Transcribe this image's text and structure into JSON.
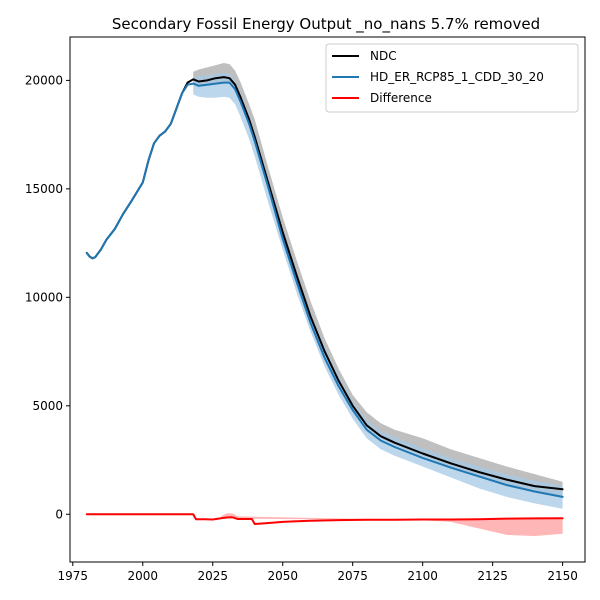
{
  "chart_data": {
    "type": "line",
    "title": "Secondary Fossil Energy Output _no_nans 5.7% removed",
    "xlabel": "",
    "ylabel": "",
    "xlim": [
      1974,
      2158
    ],
    "ylim": [
      -2200,
      22000
    ],
    "xticks": [
      1975,
      2000,
      2025,
      2050,
      2075,
      2100,
      2125,
      2150
    ],
    "yticks": [
      0,
      5000,
      10000,
      15000,
      20000
    ],
    "grid": false,
    "legend_position": "top-right",
    "series": [
      {
        "name": "NDC",
        "color": "#000000",
        "x": [
          1980,
          1981,
          1982,
          1983,
          1985,
          1987,
          1990,
          1993,
          1996,
          2000,
          2002,
          2004,
          2006,
          2008,
          2010,
          2012,
          2014,
          2016,
          2018,
          2020,
          2023,
          2026,
          2029,
          2031,
          2033,
          2035,
          2038,
          2040,
          2045,
          2050,
          2055,
          2060,
          2065,
          2070,
          2075,
          2080,
          2085,
          2090,
          2100,
          2110,
          2120,
          2130,
          2140,
          2150
        ],
        "y": [
          12050,
          11880,
          11800,
          11850,
          12200,
          12650,
          13150,
          13850,
          14450,
          15300,
          16300,
          17100,
          17450,
          17650,
          18000,
          18700,
          19400,
          19900,
          20050,
          19950,
          20000,
          20100,
          20150,
          20100,
          19800,
          19200,
          18200,
          17400,
          15200,
          13000,
          11000,
          9100,
          7500,
          6150,
          5000,
          4100,
          3600,
          3300,
          2800,
          2350,
          1950,
          1600,
          1300,
          1150
        ]
      },
      {
        "name": "HD_ER_RCP85_1_CDD_30_20",
        "color": "#1f77b4",
        "x": [
          1980,
          1981,
          1982,
          1983,
          1985,
          1987,
          1990,
          1993,
          1996,
          2000,
          2002,
          2004,
          2006,
          2008,
          2010,
          2012,
          2014,
          2016,
          2018,
          2020,
          2023,
          2026,
          2029,
          2031,
          2033,
          2035,
          2038,
          2040,
          2045,
          2050,
          2055,
          2060,
          2065,
          2070,
          2075,
          2080,
          2085,
          2090,
          2100,
          2110,
          2120,
          2130,
          2140,
          2150
        ],
        "y": [
          12050,
          11880,
          11800,
          11850,
          12200,
          12650,
          13150,
          13850,
          14450,
          15300,
          16300,
          17100,
          17450,
          17650,
          18000,
          18700,
          19400,
          19800,
          19850,
          19750,
          19800,
          19850,
          19900,
          19900,
          19600,
          19000,
          18000,
          17200,
          15000,
          12700,
          10700,
          8800,
          7200,
          5900,
          4800,
          3900,
          3400,
          3100,
          2600,
          2150,
          1750,
          1350,
          1050,
          800
        ]
      },
      {
        "name": "Difference",
        "color": "#ff0000",
        "x": [
          1980,
          1990,
          2000,
          2010,
          2018,
          2019,
          2020,
          2022,
          2025,
          2028,
          2030,
          2032,
          2034,
          2036,
          2039,
          2040,
          2045,
          2050,
          2055,
          2060,
          2070,
          2080,
          2090,
          2100,
          2110,
          2120,
          2130,
          2140,
          2150
        ],
        "y": [
          0,
          0,
          0,
          0,
          0,
          -230,
          -230,
          -230,
          -240,
          -180,
          -150,
          -140,
          -220,
          -220,
          -220,
          -450,
          -400,
          -350,
          -320,
          -300,
          -270,
          -250,
          -250,
          -240,
          -240,
          -230,
          -200,
          -190,
          -180
        ]
      }
    ],
    "bands": [
      {
        "name": "NDC range",
        "color": "#a9a9a9",
        "x": [
          2018,
          2020,
          2023,
          2026,
          2029,
          2031,
          2033,
          2035,
          2038,
          2040,
          2045,
          2050,
          2055,
          2060,
          2065,
          2070,
          2075,
          2080,
          2085,
          2090,
          2100,
          2110,
          2120,
          2130,
          2140,
          2150
        ],
        "low": [
          19900,
          19800,
          19800,
          19850,
          19900,
          19850,
          19600,
          19000,
          18000,
          17200,
          15000,
          12800,
          10800,
          8900,
          7300,
          6000,
          4900,
          4000,
          3500,
          3200,
          2700,
          2200,
          1800,
          1400,
          1050,
          800
        ],
        "high": [
          20400,
          20500,
          20600,
          20700,
          20800,
          20750,
          20450,
          19900,
          18900,
          18200,
          15900,
          13700,
          11700,
          9800,
          8100,
          6700,
          5500,
          4700,
          4200,
          3900,
          3500,
          3000,
          2600,
          2200,
          1850,
          1500
        ]
      },
      {
        "name": "HD_ER_RCP85_1_CDD_30_20 range",
        "color": "#a6c8e6",
        "x": [
          2018,
          2020,
          2023,
          2026,
          2029,
          2031,
          2033,
          2035,
          2038,
          2040,
          2045,
          2050,
          2055,
          2060,
          2065,
          2070,
          2075,
          2080,
          2085,
          2090,
          2100,
          2110,
          2120,
          2130,
          2140,
          2150
        ],
        "low": [
          19350,
          19250,
          19200,
          19200,
          19250,
          19200,
          18900,
          18300,
          17300,
          16500,
          14300,
          12200,
          10200,
          8400,
          6800,
          5500,
          4400,
          3500,
          3000,
          2700,
          2200,
          1700,
          1200,
          800,
          500,
          250
        ],
        "high": [
          20100,
          20200,
          20250,
          20300,
          20350,
          20300,
          20000,
          19400,
          18400,
          17600,
          15400,
          13200,
          11200,
          9300,
          7700,
          6400,
          5200,
          4350,
          3850,
          3550,
          3050,
          2600,
          2200,
          1850,
          1550,
          1300
        ]
      },
      {
        "name": "Difference range",
        "color": "#ff9e9e",
        "x": [
          2028,
          2030,
          2032,
          2034,
          2080,
          2090,
          2100,
          2110,
          2120,
          2130,
          2140,
          2150
        ],
        "low": [
          -200,
          -120,
          -120,
          -200,
          -250,
          -260,
          -280,
          -350,
          -650,
          -950,
          -1000,
          -900
        ],
        "high": [
          -100,
          50,
          40,
          -100,
          -220,
          -220,
          -220,
          -220,
          -220,
          -200,
          -180,
          -170
        ]
      }
    ]
  }
}
